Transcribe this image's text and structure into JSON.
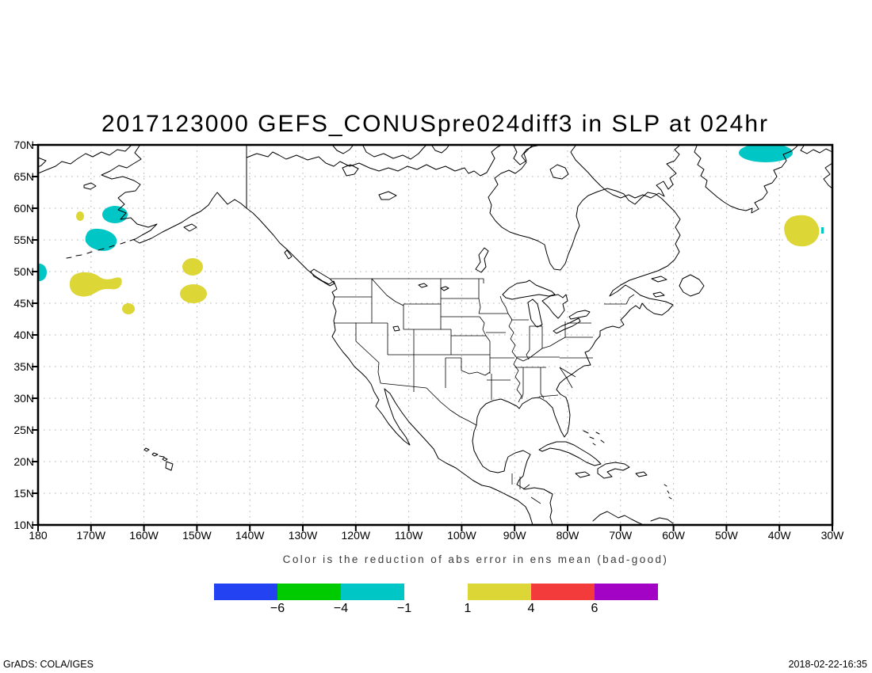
{
  "title": "2017123000 GEFS_CONUSpre024diff3 in SLP at 024hr",
  "caption": "Color is the reduction of abs error in ens mean (bad-good)",
  "footer": {
    "left": "GrADS: COLA/IGES",
    "right": "2018-02-22-16:35"
  },
  "axes": {
    "y_labels": [
      "70N",
      "65N",
      "60N",
      "55N",
      "50N",
      "45N",
      "40N",
      "35N",
      "30N",
      "25N",
      "20N",
      "15N",
      "10N"
    ],
    "x_labels": [
      "180",
      "170W",
      "160W",
      "150W",
      "140W",
      "130W",
      "120W",
      "110W",
      "100W",
      "90W",
      "80W",
      "70W",
      "60W",
      "50W",
      "40W",
      "30W"
    ]
  },
  "colorbar": {
    "negative": {
      "colors": [
        "#2342f2",
        "#00cb00",
        "#00c6c6"
      ],
      "labels": [
        "−6",
        "−4",
        "−1"
      ]
    },
    "positive": {
      "colors": [
        "#dcd637",
        "#f43b3b",
        "#a303c4"
      ],
      "labels": [
        "1",
        "4",
        "6"
      ]
    }
  },
  "map": {
    "fill_colors": {
      "cyan": "#00c6c6",
      "yellow": "#dcd637"
    }
  },
  "chart_data": {
    "type": "heatmap",
    "title": "2017123000 GEFS_CONUSpre024diff3 in SLP at 024hr",
    "subtitle": "Color is the reduction of abs error in ens mean (bad-good)",
    "projection": "latlon",
    "lon_range_deg": [
      -180,
      -30
    ],
    "lat_range_deg": [
      10,
      70
    ],
    "lon_ticks": [
      "180",
      "170W",
      "160W",
      "150W",
      "140W",
      "130W",
      "120W",
      "110W",
      "100W",
      "90W",
      "80W",
      "70W",
      "60W",
      "50W",
      "40W",
      "30W"
    ],
    "lat_ticks": [
      "10N",
      "15N",
      "20N",
      "25N",
      "30N",
      "35N",
      "40N",
      "45N",
      "50N",
      "55N",
      "60N",
      "65N",
      "70N"
    ],
    "contour_levels": [
      -6,
      -4,
      -1,
      1,
      4,
      6
    ],
    "level_colors": [
      "#2342f2",
      "#00cb00",
      "#00c6c6",
      "#ffffff",
      "#dcd637",
      "#f43b3b",
      "#a303c4"
    ],
    "grid": "dotted",
    "shaded_regions": [
      {
        "band": "-4 to -1",
        "color_name": "cyan",
        "approx_lon": -165.5,
        "approx_lat": 59.2
      },
      {
        "band": "-4 to -1",
        "color_name": "cyan",
        "approx_lon": -168.2,
        "approx_lat": 55.2
      },
      {
        "band": "-4 to -1",
        "color_name": "cyan",
        "approx_lon": -179.7,
        "approx_lat": 50.0
      },
      {
        "band": "-4 to -1",
        "color_name": "cyan",
        "approx_lon": -42.6,
        "approx_lat": 69.0
      },
      {
        "band": "1 to 4",
        "color_name": "yellow",
        "approx_lon": -172.1,
        "approx_lat": 58.9
      },
      {
        "band": "1 to 4",
        "color_name": "yellow",
        "approx_lon": -169.2,
        "approx_lat": 48.0
      },
      {
        "band": "1 to 4",
        "color_name": "yellow",
        "approx_lon": -162.9,
        "approx_lat": 44.3
      },
      {
        "band": "1 to 4",
        "color_name": "yellow",
        "approx_lon": -150.8,
        "approx_lat": 50.9
      },
      {
        "band": "1 to 4",
        "color_name": "yellow",
        "approx_lon": -150.7,
        "approx_lat": 46.6
      },
      {
        "band": "1 to 4",
        "color_name": "yellow",
        "approx_lon": -36.0,
        "approx_lat": 56.6
      }
    ]
  }
}
